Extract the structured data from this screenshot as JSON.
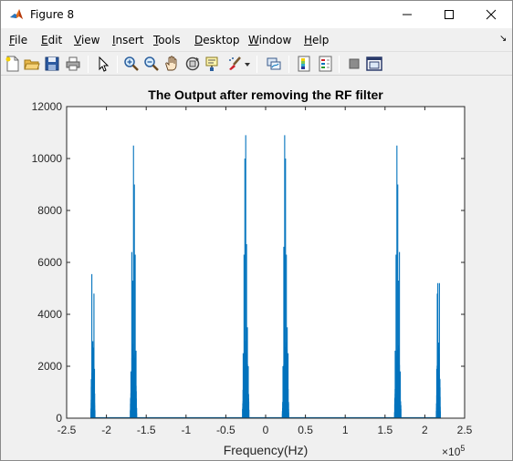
{
  "window": {
    "title": "Figure 8"
  },
  "menu": {
    "items": [
      {
        "label": "File",
        "name": "menu-file"
      },
      {
        "label": "Edit",
        "name": "menu-edit"
      },
      {
        "label": "View",
        "name": "menu-view"
      },
      {
        "label": "Insert",
        "name": "menu-insert"
      },
      {
        "label": "Tools",
        "name": "menu-tools"
      },
      {
        "label": "Desktop",
        "name": "menu-desktop"
      },
      {
        "label": "Window",
        "name": "menu-window"
      },
      {
        "label": "Help",
        "name": "menu-help"
      }
    ],
    "dock_glyph": "↘"
  },
  "toolbar": {
    "buttons": [
      "new-figure-icon",
      "open-file-icon",
      "save-icon",
      "print-icon",
      "pointer-icon",
      "zoom-in-icon",
      "zoom-out-icon",
      "pan-icon",
      "rotate-3d-icon",
      "data-cursor-icon",
      "brush-icon",
      "link-plot-icon",
      "colorbar-icon",
      "legend-icon",
      "hide-plot-tools-icon",
      "show-plot-tools-icon"
    ]
  },
  "colors": {
    "series": "#0072bd",
    "axes": "#262626",
    "background": "#f0f0f0"
  },
  "chart_data": {
    "type": "line",
    "title": "The Output after removing the RF filter",
    "xlabel": "Frequency(Hz)",
    "ylabel": "",
    "x_exponent_label": "10",
    "x_exponent_power": "5",
    "xlim": [
      -2.5,
      2.5
    ],
    "ylim": [
      0,
      12000
    ],
    "xticks": [
      -2.5,
      -2,
      -1.5,
      -1,
      -0.5,
      0,
      0.5,
      1,
      1.5,
      2,
      2.5
    ],
    "xtick_labels": [
      "-2.5",
      "-2",
      "-1.5",
      "-1",
      "-0.5",
      "0",
      "0.5",
      "1",
      "1.5",
      "2",
      "2.5"
    ],
    "yticks": [
      0,
      2000,
      4000,
      6000,
      8000,
      10000,
      12000
    ],
    "ytick_labels": [
      "0",
      "2000",
      "4000",
      "6000",
      "8000",
      "10000",
      "12000"
    ],
    "grid": false,
    "series": [
      {
        "peaks": [
          {
            "center": -2.17,
            "width": 0.05,
            "peak_values": [
              1500,
              5550,
              2100,
              1200,
              1500,
              4800,
              1900
            ]
          },
          {
            "center": -1.66,
            "width": 0.08,
            "peak_values": [
              1800,
              6400,
              5300,
              10500,
              9000,
              6300,
              2600
            ]
          },
          {
            "center": -0.25,
            "width": 0.08,
            "peak_values": [
              2500,
              6300,
              10000,
              10900,
              6700,
              3500,
              2000
            ]
          },
          {
            "center": 0.25,
            "width": 0.08,
            "peak_values": [
              2000,
              6600,
              10900,
              10000,
              6300,
              3500,
              2500
            ]
          },
          {
            "center": 1.66,
            "width": 0.08,
            "peak_values": [
              2600,
              6300,
              10500,
              9000,
              5300,
              6400,
              1800
            ]
          },
          {
            "center": 2.17,
            "width": 0.05,
            "peak_values": [
              1900,
              4800,
              5200,
              2000,
              1500,
              5200,
              1500
            ]
          }
        ]
      }
    ]
  }
}
